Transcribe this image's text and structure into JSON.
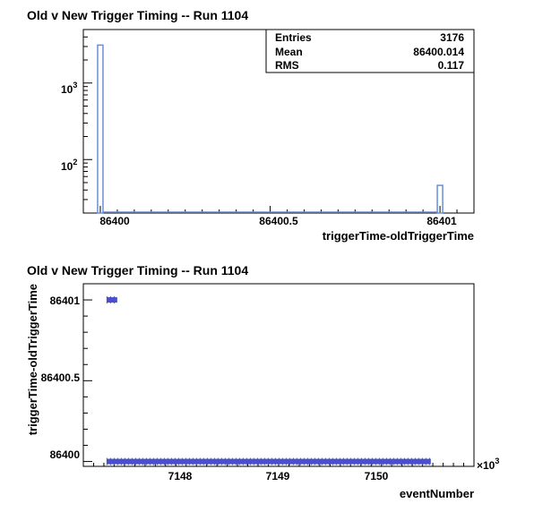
{
  "chart_data": [
    {
      "type": "bar",
      "title": "Old v New Trigger Timing -- Run 1104",
      "xlabel": "triggerTime-oldTriggerTime",
      "ylabel": "",
      "yscale": "log",
      "xlim": [
        86399.95,
        86401.1
      ],
      "ylim": [
        20,
        5000
      ],
      "x_ticks": [
        "86400",
        "86400.5",
        "86401"
      ],
      "y_ticks": [
        {
          "base": "10",
          "exp": "2"
        },
        {
          "base": "10",
          "exp": "3"
        }
      ],
      "bins": [
        {
          "x": 86400.0,
          "count": 3130
        },
        {
          "x": 86401.0,
          "count": 46
        }
      ],
      "stats": [
        {
          "label": "Entries",
          "value": "3176"
        },
        {
          "label": "Mean",
          "value": "86400.014"
        },
        {
          "label": "RMS",
          "value": "0.117"
        }
      ],
      "line_color": "#6b8fd4"
    },
    {
      "type": "scatter",
      "title": "Old v New Trigger Timing -- Run 1104",
      "xlabel": "eventNumber",
      "ylabel": "triggerTime-oldTriggerTime",
      "x_multiplier": {
        "base": "×10",
        "exp": "3"
      },
      "xlim": [
        7147.2,
        7151.0
      ],
      "ylim": [
        86399.97,
        86401.1
      ],
      "x_ticks": [
        "7148",
        "7149",
        "7150"
      ],
      "y_ticks": [
        "86400",
        "86400.5",
        "86401"
      ],
      "segments": [
        {
          "y": 86401.0,
          "x_start": 7147.43,
          "x_end": 7147.53
        },
        {
          "y": 86400.0,
          "x_start": 7147.43,
          "x_end": 7150.58
        }
      ],
      "marker_color": "#4a4fd0"
    }
  ]
}
